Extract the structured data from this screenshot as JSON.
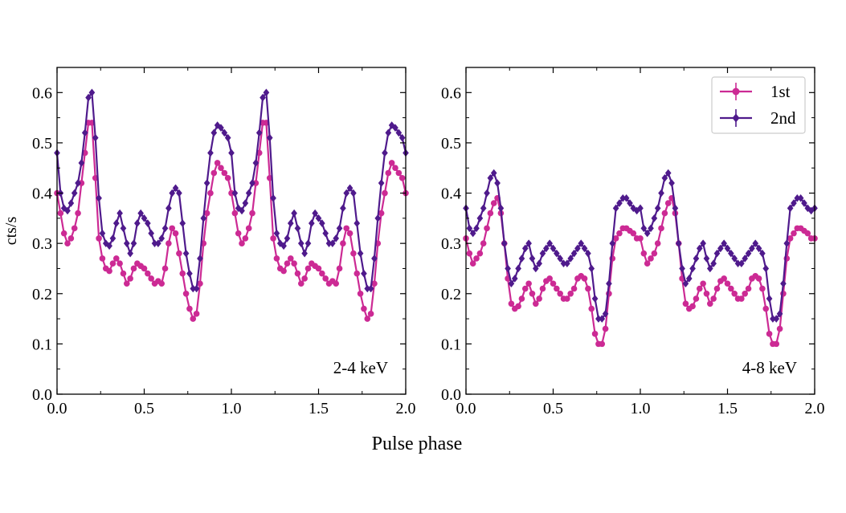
{
  "figure": {
    "xlabel": "Pulse phase"
  },
  "colors": {
    "series_1st": "#cc2a94",
    "series_2nd": "#4f1a8c",
    "axis": "#000000",
    "legend_border": "#cccccc"
  },
  "legend": {
    "entries": [
      "1st",
      "2nd"
    ],
    "location": "top-right of right panel"
  },
  "chart_data": [
    {
      "type": "line",
      "panel": "left",
      "annotation": "2-4 keV",
      "xlabel": "",
      "ylabel": "cts/s",
      "xlim": [
        0,
        2.0
      ],
      "ylim": [
        0,
        0.65
      ],
      "xticks": [
        "0.0",
        "0.5",
        "1.0",
        "1.5",
        "2.0"
      ],
      "yticks": [
        "0.0",
        "0.1",
        "0.2",
        "0.3",
        "0.4",
        "0.5",
        "0.6"
      ],
      "x": [
        0.0,
        0.02,
        0.04,
        0.06,
        0.08,
        0.1,
        0.12,
        0.14,
        0.16,
        0.18,
        0.2,
        0.22,
        0.24,
        0.26,
        0.28,
        0.3,
        0.32,
        0.34,
        0.36,
        0.38,
        0.4,
        0.42,
        0.44,
        0.46,
        0.48,
        0.5,
        0.52,
        0.54,
        0.56,
        0.58,
        0.6,
        0.62,
        0.64,
        0.66,
        0.68,
        0.7,
        0.72,
        0.74,
        0.76,
        0.78,
        0.8,
        0.82,
        0.84,
        0.86,
        0.88,
        0.9,
        0.92,
        0.94,
        0.96,
        0.98,
        1.0,
        1.02,
        1.04,
        1.06,
        1.08,
        1.1,
        1.12,
        1.14,
        1.16,
        1.18,
        1.2,
        1.22,
        1.24,
        1.26,
        1.28,
        1.3,
        1.32,
        1.34,
        1.36,
        1.38,
        1.4,
        1.42,
        1.44,
        1.46,
        1.48,
        1.5,
        1.52,
        1.54,
        1.56,
        1.58,
        1.6,
        1.62,
        1.64,
        1.66,
        1.68,
        1.7,
        1.72,
        1.74,
        1.76,
        1.78,
        1.8,
        1.82,
        1.84,
        1.86,
        1.88,
        1.9,
        1.92,
        1.94,
        1.96,
        1.98,
        2.0
      ],
      "series": [
        {
          "name": "1st",
          "marker": "circle",
          "values": [
            0.4,
            0.36,
            0.32,
            0.3,
            0.31,
            0.33,
            0.36,
            0.42,
            0.48,
            0.54,
            0.54,
            0.43,
            0.31,
            0.27,
            0.25,
            0.245,
            0.26,
            0.27,
            0.26,
            0.24,
            0.22,
            0.23,
            0.25,
            0.26,
            0.255,
            0.25,
            0.24,
            0.23,
            0.22,
            0.225,
            0.22,
            0.25,
            0.3,
            0.33,
            0.32,
            0.28,
            0.24,
            0.2,
            0.17,
            0.15,
            0.16,
            0.22,
            0.3,
            0.36,
            0.4,
            0.44,
            0.46,
            0.45,
            0.44,
            0.43,
            0.4,
            0.36,
            0.32,
            0.3,
            0.31,
            0.33,
            0.36,
            0.42,
            0.48,
            0.54,
            0.54,
            0.43,
            0.31,
            0.27,
            0.25,
            0.245,
            0.26,
            0.27,
            0.26,
            0.24,
            0.22,
            0.23,
            0.25,
            0.26,
            0.255,
            0.25,
            0.24,
            0.23,
            0.22,
            0.225,
            0.22,
            0.25,
            0.3,
            0.33,
            0.32,
            0.28,
            0.24,
            0.2,
            0.17,
            0.15,
            0.16,
            0.22,
            0.3,
            0.36,
            0.4,
            0.44,
            0.46,
            0.45,
            0.44,
            0.43,
            0.4
          ]
        },
        {
          "name": "2nd",
          "marker": "diamond",
          "values": [
            0.48,
            0.4,
            0.37,
            0.365,
            0.38,
            0.4,
            0.42,
            0.46,
            0.52,
            0.59,
            0.6,
            0.51,
            0.39,
            0.32,
            0.3,
            0.295,
            0.31,
            0.34,
            0.36,
            0.33,
            0.3,
            0.28,
            0.3,
            0.34,
            0.36,
            0.35,
            0.34,
            0.32,
            0.3,
            0.3,
            0.31,
            0.33,
            0.37,
            0.4,
            0.41,
            0.4,
            0.34,
            0.28,
            0.24,
            0.21,
            0.21,
            0.27,
            0.35,
            0.42,
            0.48,
            0.52,
            0.535,
            0.53,
            0.52,
            0.51,
            0.48,
            0.4,
            0.37,
            0.365,
            0.38,
            0.4,
            0.42,
            0.46,
            0.52,
            0.59,
            0.6,
            0.51,
            0.39,
            0.32,
            0.3,
            0.295,
            0.31,
            0.34,
            0.36,
            0.33,
            0.3,
            0.28,
            0.3,
            0.34,
            0.36,
            0.35,
            0.34,
            0.32,
            0.3,
            0.3,
            0.31,
            0.33,
            0.37,
            0.4,
            0.41,
            0.4,
            0.34,
            0.28,
            0.24,
            0.21,
            0.21,
            0.27,
            0.35,
            0.42,
            0.48,
            0.52,
            0.535,
            0.53,
            0.52,
            0.51,
            0.48
          ]
        }
      ]
    },
    {
      "type": "line",
      "panel": "right",
      "annotation": "4-8 keV",
      "xlabel": "",
      "ylabel": "",
      "xlim": [
        0,
        2.0
      ],
      "ylim": [
        0,
        0.65
      ],
      "xticks": [
        "0.0",
        "0.5",
        "1.0",
        "1.5",
        "2.0"
      ],
      "yticks": [
        "0.0",
        "0.1",
        "0.2",
        "0.3",
        "0.4",
        "0.5",
        "0.6"
      ],
      "x": [
        0.0,
        0.02,
        0.04,
        0.06,
        0.08,
        0.1,
        0.12,
        0.14,
        0.16,
        0.18,
        0.2,
        0.22,
        0.24,
        0.26,
        0.28,
        0.3,
        0.32,
        0.34,
        0.36,
        0.38,
        0.4,
        0.42,
        0.44,
        0.46,
        0.48,
        0.5,
        0.52,
        0.54,
        0.56,
        0.58,
        0.6,
        0.62,
        0.64,
        0.66,
        0.68,
        0.7,
        0.72,
        0.74,
        0.76,
        0.78,
        0.8,
        0.82,
        0.84,
        0.86,
        0.88,
        0.9,
        0.92,
        0.94,
        0.96,
        0.98,
        1.0,
        1.02,
        1.04,
        1.06,
        1.08,
        1.1,
        1.12,
        1.14,
        1.16,
        1.18,
        1.2,
        1.22,
        1.24,
        1.26,
        1.28,
        1.3,
        1.32,
        1.34,
        1.36,
        1.38,
        1.4,
        1.42,
        1.44,
        1.46,
        1.48,
        1.5,
        1.52,
        1.54,
        1.56,
        1.58,
        1.6,
        1.62,
        1.64,
        1.66,
        1.68,
        1.7,
        1.72,
        1.74,
        1.76,
        1.78,
        1.8,
        1.82,
        1.84,
        1.86,
        1.88,
        1.9,
        1.92,
        1.94,
        1.96,
        1.98,
        2.0
      ],
      "series": [
        {
          "name": "1st",
          "marker": "circle",
          "values": [
            0.31,
            0.28,
            0.26,
            0.27,
            0.28,
            0.3,
            0.33,
            0.36,
            0.38,
            0.39,
            0.36,
            0.3,
            0.23,
            0.18,
            0.17,
            0.175,
            0.19,
            0.21,
            0.22,
            0.2,
            0.18,
            0.19,
            0.21,
            0.225,
            0.23,
            0.22,
            0.21,
            0.2,
            0.19,
            0.19,
            0.2,
            0.21,
            0.23,
            0.235,
            0.23,
            0.21,
            0.17,
            0.12,
            0.1,
            0.1,
            0.13,
            0.2,
            0.27,
            0.31,
            0.32,
            0.33,
            0.33,
            0.325,
            0.32,
            0.31,
            0.31,
            0.28,
            0.26,
            0.27,
            0.28,
            0.3,
            0.33,
            0.36,
            0.38,
            0.39,
            0.36,
            0.3,
            0.23,
            0.18,
            0.17,
            0.175,
            0.19,
            0.21,
            0.22,
            0.2,
            0.18,
            0.19,
            0.21,
            0.225,
            0.23,
            0.22,
            0.21,
            0.2,
            0.19,
            0.19,
            0.2,
            0.21,
            0.23,
            0.235,
            0.23,
            0.21,
            0.17,
            0.12,
            0.1,
            0.1,
            0.13,
            0.2,
            0.27,
            0.31,
            0.32,
            0.33,
            0.33,
            0.325,
            0.32,
            0.31,
            0.31
          ]
        },
        {
          "name": "2nd",
          "marker": "diamond",
          "values": [
            0.37,
            0.33,
            0.32,
            0.33,
            0.35,
            0.37,
            0.4,
            0.43,
            0.44,
            0.42,
            0.37,
            0.3,
            0.25,
            0.22,
            0.23,
            0.25,
            0.27,
            0.29,
            0.3,
            0.27,
            0.25,
            0.26,
            0.28,
            0.29,
            0.3,
            0.29,
            0.28,
            0.27,
            0.26,
            0.26,
            0.27,
            0.28,
            0.29,
            0.3,
            0.29,
            0.28,
            0.25,
            0.19,
            0.15,
            0.15,
            0.16,
            0.22,
            0.3,
            0.37,
            0.38,
            0.39,
            0.39,
            0.38,
            0.37,
            0.365,
            0.37,
            0.33,
            0.32,
            0.33,
            0.35,
            0.37,
            0.4,
            0.43,
            0.44,
            0.42,
            0.37,
            0.3,
            0.25,
            0.22,
            0.23,
            0.25,
            0.27,
            0.29,
            0.3,
            0.27,
            0.25,
            0.26,
            0.28,
            0.29,
            0.3,
            0.29,
            0.28,
            0.27,
            0.26,
            0.26,
            0.27,
            0.28,
            0.29,
            0.3,
            0.29,
            0.28,
            0.25,
            0.19,
            0.15,
            0.15,
            0.16,
            0.22,
            0.3,
            0.37,
            0.38,
            0.39,
            0.39,
            0.38,
            0.37,
            0.365,
            0.37
          ]
        }
      ]
    }
  ]
}
